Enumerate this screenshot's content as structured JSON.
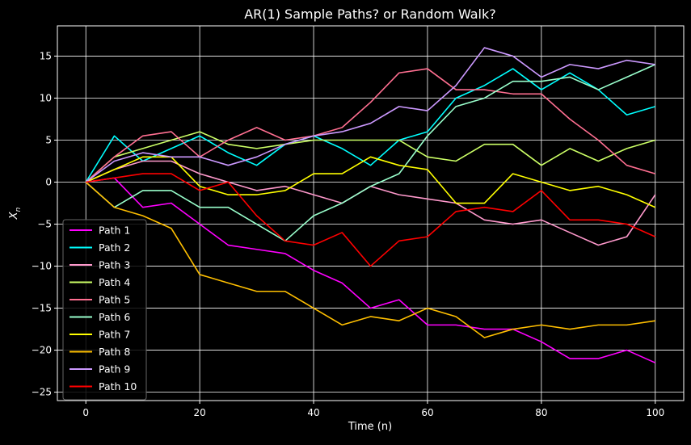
{
  "chart_data": {
    "type": "line",
    "title": "AR(1) Sample Paths? or Random Walk?",
    "xlabel": "Time (n)",
    "ylabel": "X",
    "ylabel_sub": "n",
    "xlim": [
      -5,
      105
    ],
    "ylim": [
      -26,
      18.6
    ],
    "xticks": [
      0,
      20,
      40,
      60,
      80,
      100
    ],
    "yticks": [
      -25,
      -20,
      -15,
      -10,
      -5,
      0,
      5,
      10,
      15
    ],
    "grid": true,
    "legend": "lower-left",
    "background": "#000000",
    "foreground": "#ffffff",
    "x": [
      0,
      5,
      10,
      15,
      20,
      25,
      30,
      35,
      40,
      45,
      50,
      55,
      60,
      65,
      70,
      75,
      80,
      85,
      90,
      95,
      100
    ],
    "series": [
      {
        "name": "Path 1",
        "color": "#ff00ff",
        "values": [
          0,
          0.5,
          -3,
          -2.5,
          -5,
          -7.5,
          -8,
          -8.5,
          -10.5,
          -12,
          -15,
          -14,
          -17,
          -17,
          -17.5,
          -17.5,
          -19,
          -21,
          -21,
          -20,
          -21.5
        ]
      },
      {
        "name": "Path 2",
        "color": "#00ffff",
        "values": [
          0,
          5.5,
          2.5,
          4,
          5.5,
          3.5,
          2,
          4.5,
          5.5,
          4,
          2,
          5,
          6,
          10,
          11.5,
          13.5,
          11,
          13,
          11,
          8,
          9
        ]
      },
      {
        "name": "Path 3",
        "color": "#ff99cc",
        "values": [
          0,
          1.5,
          2.5,
          2.5,
          1,
          0,
          -1,
          -0.5,
          -1.5,
          -2.5,
          -0.5,
          -1.5,
          -2,
          -2.5,
          -4.5,
          -5,
          -4.5,
          -6,
          -7.5,
          -6.5,
          -1.5
        ]
      },
      {
        "name": "Path 4",
        "color": "#ccff66",
        "values": [
          0,
          3,
          4,
          5,
          6,
          4.5,
          4,
          4.5,
          5,
          5,
          5,
          5,
          3,
          2.5,
          4.5,
          4.5,
          2,
          4,
          2.5,
          4,
          5
        ]
      },
      {
        "name": "Path 5",
        "color": "#ff6f91",
        "values": [
          0,
          3,
          5.5,
          6,
          3,
          5,
          6.5,
          5,
          5.5,
          6.5,
          9.5,
          13,
          13.5,
          11,
          11,
          10.5,
          10.5,
          7.5,
          5,
          2,
          1
        ]
      },
      {
        "name": "Path 6",
        "color": "#99ffcc",
        "values": [
          0,
          -3,
          -1,
          -1,
          -3,
          -3,
          -5,
          -7,
          -4,
          -2.5,
          -0.5,
          1,
          5.5,
          9,
          10,
          12,
          12,
          12.5,
          11,
          12.5,
          14
        ]
      },
      {
        "name": "Path 7",
        "color": "#ffff00",
        "values": [
          0,
          1.5,
          3,
          3,
          -0.5,
          -1.5,
          -1.5,
          -1,
          1,
          1,
          3,
          2,
          1.5,
          -2.5,
          -2.5,
          1,
          0,
          -1,
          -0.5,
          -1.5,
          -3
        ]
      },
      {
        "name": "Path 8",
        "color": "#ffbf00",
        "values": [
          0,
          -3,
          -4,
          -5.5,
          -11,
          -12,
          -13,
          -13,
          -15,
          -17,
          -16,
          -16.5,
          -15,
          -16,
          -18.5,
          -17.5,
          -17,
          -17.5,
          -17,
          -17,
          -16.5
        ]
      },
      {
        "name": "Path 9",
        "color": "#cc99ff",
        "values": [
          0,
          2.5,
          3.5,
          3,
          3,
          2,
          3,
          4.5,
          5.5,
          6,
          7,
          9,
          8.5,
          11.5,
          16,
          15,
          12.5,
          14,
          13.5,
          14.5,
          14
        ]
      },
      {
        "name": "Path 10",
        "color": "#ff0000",
        "values": [
          0,
          0.5,
          1,
          1,
          -1,
          0,
          -4,
          -7,
          -7.5,
          -6,
          -10,
          -7,
          -6.5,
          -3.5,
          -3,
          -3.5,
          -1,
          -4.5,
          -4.5,
          -5,
          -6.5
        ]
      }
    ]
  }
}
